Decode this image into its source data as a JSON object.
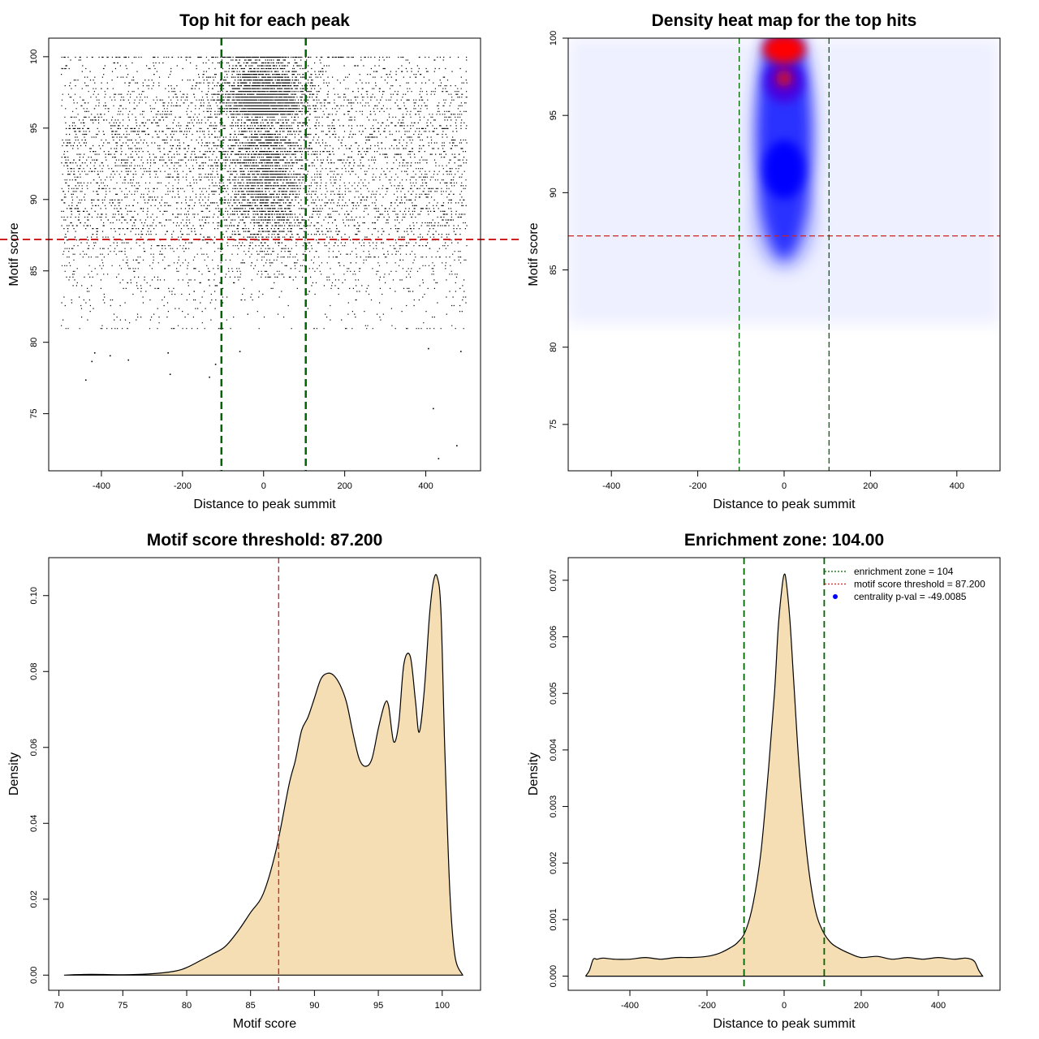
{
  "chart_data": [
    {
      "type": "scatter",
      "title": "Top hit for each peak",
      "xlabel": "Distance to peak summit",
      "ylabel": "Motif score",
      "xlim": [
        -530,
        535
      ],
      "ylim": [
        71,
        101.3
      ],
      "xticks": [
        -400,
        -200,
        0,
        200,
        400
      ],
      "yticks": [
        75,
        80,
        85,
        90,
        95,
        100
      ],
      "threshold_score": 87.2,
      "enrichment_zone": [
        -104,
        104
      ],
      "grid": false,
      "outlier_points": [
        {
          "x": -440,
          "y": 77.4
        },
        {
          "x": -425,
          "y": 78.7
        },
        {
          "x": -418,
          "y": 79.3
        },
        {
          "x": -380,
          "y": 79.1
        },
        {
          "x": -335,
          "y": 78.8
        },
        {
          "x": -237,
          "y": 79.3
        },
        {
          "x": -232,
          "y": 77.8
        },
        {
          "x": -135,
          "y": 77.6
        },
        {
          "x": -120,
          "y": 78.5
        },
        {
          "x": 417,
          "y": 75.4
        },
        {
          "x": 430,
          "y": 71.9
        },
        {
          "x": 475,
          "y": 72.8
        },
        {
          "x": 485,
          "y": 79.4
        },
        {
          "x": 405,
          "y": 79.6
        },
        {
          "x": -60,
          "y": 79.4
        }
      ],
      "colors": {
        "points": "#000000",
        "threshold": "#cc2222",
        "zone": "#006400"
      }
    },
    {
      "type": "heatmap",
      "title": "Density heat map for the top hits",
      "xlabel": "Distance to peak summit",
      "ylabel": "Motif score",
      "xlim": [
        -500,
        500
      ],
      "ylim": [
        72,
        100
      ],
      "xticks": [
        -400,
        -200,
        0,
        200,
        400
      ],
      "yticks": [
        75,
        80,
        85,
        90,
        95,
        100
      ],
      "threshold_score": 87.2,
      "enrichment_zone": [
        -104,
        104
      ],
      "colors": {
        "low": "#ffffff",
        "mid": "#0000ff",
        "high": "#ff0000",
        "threshold": "#cc2222",
        "zone": "#006400"
      }
    },
    {
      "type": "area",
      "title": "Motif score threshold: 87.200",
      "xlabel": "Motif score",
      "ylabel": "Density",
      "xlim": [
        69.2,
        103.0
      ],
      "ylim": [
        -0.004,
        0.11
      ],
      "xticks": [
        70,
        75,
        80,
        85,
        90,
        95,
        100
      ],
      "yticks": [
        0.0,
        0.02,
        0.04,
        0.06,
        0.08,
        0.1
      ],
      "ytick_labels": [
        "0.00",
        "0.02",
        "0.04",
        "0.06",
        "0.08",
        "0.10"
      ],
      "threshold_score": 87.2,
      "x": [
        70.4,
        72.5,
        75,
        77,
        79,
        80,
        81,
        82,
        83,
        84,
        85,
        86,
        87,
        88,
        88.5,
        89,
        89.5,
        90,
        90.5,
        91,
        91.5,
        92,
        92.5,
        93,
        93.5,
        94,
        94.5,
        95,
        95.5,
        95.8,
        96.2,
        96.6,
        97,
        97.5,
        97.9,
        98.2,
        98.6,
        99,
        99.3,
        99.6,
        99.9,
        100.2,
        100.6,
        101,
        101.6
      ],
      "y": [
        0.0,
        0.0002,
        0.0001,
        0.0003,
        0.001,
        0.002,
        0.0037,
        0.0055,
        0.0075,
        0.0115,
        0.0165,
        0.0215,
        0.033,
        0.05,
        0.0565,
        0.0645,
        0.068,
        0.073,
        0.078,
        0.0795,
        0.079,
        0.0765,
        0.072,
        0.064,
        0.057,
        0.055,
        0.057,
        0.065,
        0.0715,
        0.071,
        0.0615,
        0.0665,
        0.082,
        0.084,
        0.0725,
        0.064,
        0.075,
        0.0945,
        0.1035,
        0.105,
        0.096,
        0.06,
        0.022,
        0.005,
        0.0
      ],
      "colors": {
        "fill": "#f5deb3",
        "line": "#000000",
        "threshold": "#cc2222"
      }
    },
    {
      "type": "area",
      "title": "Enrichment zone: 104.00",
      "xlabel": "Distance to peak summit",
      "ylabel": "Density",
      "xlim": [
        -560,
        560
      ],
      "ylim": [
        -0.00025,
        0.0074
      ],
      "xticks": [
        -400,
        -200,
        0,
        200,
        400
      ],
      "yticks": [
        0.0,
        0.001,
        0.002,
        0.003,
        0.004,
        0.005,
        0.006,
        0.007
      ],
      "ytick_labels": [
        "0.000",
        "0.001",
        "0.002",
        "0.003",
        "0.004",
        "0.005",
        "0.006",
        "0.007"
      ],
      "enrichment_zone": [
        -104,
        104
      ],
      "x": [
        -515,
        -505,
        -495,
        -485,
        -470,
        -440,
        -400,
        -360,
        -320,
        -280,
        -240,
        -200,
        -170,
        -140,
        -120,
        -100,
        -80,
        -60,
        -40,
        -25,
        -15,
        -5,
        0,
        5,
        15,
        25,
        40,
        60,
        80,
        100,
        120,
        140,
        170,
        200,
        240,
        280,
        320,
        360,
        400,
        440,
        470,
        485,
        495,
        505,
        515
      ],
      "y": [
        0.0,
        0.0001,
        0.0003,
        0.0003,
        0.00032,
        0.0003,
        0.0003,
        0.00033,
        0.0003,
        0.00033,
        0.00033,
        0.00035,
        0.0004,
        0.0005,
        0.0006,
        0.0008,
        0.0013,
        0.0022,
        0.0037,
        0.005,
        0.0062,
        0.0069,
        0.0071,
        0.007,
        0.0063,
        0.0052,
        0.0036,
        0.0021,
        0.0012,
        0.0008,
        0.0006,
        0.0005,
        0.0004,
        0.00033,
        0.00035,
        0.0003,
        0.00033,
        0.0003,
        0.00033,
        0.0003,
        0.00032,
        0.0003,
        0.00025,
        0.0001,
        0.0
      ],
      "legend": {
        "placement": "top-right",
        "entries": [
          {
            "label": "enrichment zone = 104",
            "color": "#006400",
            "style": "dotted"
          },
          {
            "label": "motif score threshold = 87.200",
            "color": "#cc2222",
            "style": "dotted"
          },
          {
            "label": "centrality p-val = -49.0085",
            "color": "#0000ff",
            "style": "point"
          }
        ]
      },
      "colors": {
        "fill": "#f5deb3",
        "line": "#000000",
        "zone": "#006400"
      }
    }
  ]
}
